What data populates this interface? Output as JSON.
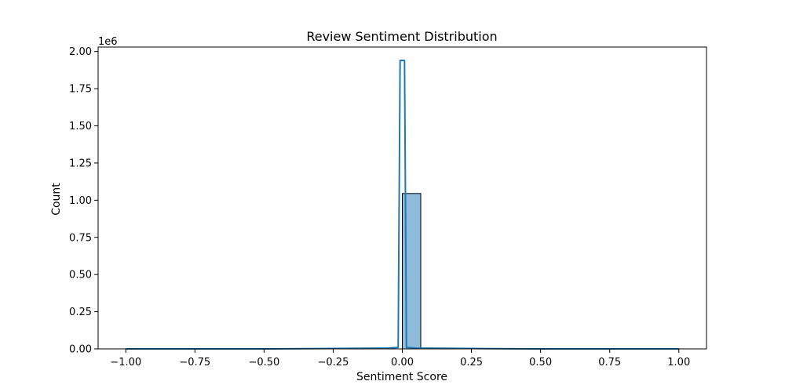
{
  "chart_data": {
    "type": "bar",
    "subtype": "histogram with kde line",
    "title": "Review Sentiment Distribution",
    "xlabel": "Sentiment Score",
    "ylabel": "Count",
    "y_offset_label": "1e6",
    "xlim": [
      -1.1,
      1.1
    ],
    "ylim": [
      0,
      2.03
    ],
    "y_unit_multiplier": 1000000,
    "x_ticks": [
      -1.0,
      -0.75,
      -0.5,
      -0.25,
      0.0,
      0.25,
      0.5,
      0.75,
      1.0
    ],
    "x_tick_labels": [
      "−1.00",
      "−0.75",
      "−0.50",
      "−0.25",
      "0.00",
      "0.25",
      "0.50",
      "0.75",
      "1.00"
    ],
    "y_ticks": [
      0,
      0.25,
      0.5,
      0.75,
      1.0,
      1.25,
      1.5,
      1.75,
      2.0
    ],
    "y_tick_labels": [
      "0.00",
      "0.25",
      "0.50",
      "0.75",
      "1.00",
      "1.25",
      "1.50",
      "1.75",
      "2.00"
    ],
    "bins": [
      {
        "x0": 0.0,
        "x1": 0.0667,
        "count": 1.045
      }
    ],
    "kde": {
      "x": [
        -1.0,
        -0.5,
        -0.2,
        -0.05,
        -0.015,
        -0.008,
        0.0,
        0.008,
        0.015,
        0.05,
        0.2,
        0.5,
        0.8,
        1.0
      ],
      "y": [
        0.0,
        0.0,
        0.003,
        0.005,
        0.01,
        1.94,
        1.94,
        1.94,
        0.01,
        0.005,
        0.003,
        0.0,
        0.0,
        0.0
      ]
    },
    "colors": {
      "bar_fill": "#8fbbda",
      "bar_edge": "#000000",
      "kde_line": "#1f77b4",
      "axis": "#000000"
    },
    "grid": false,
    "legend": "none"
  }
}
